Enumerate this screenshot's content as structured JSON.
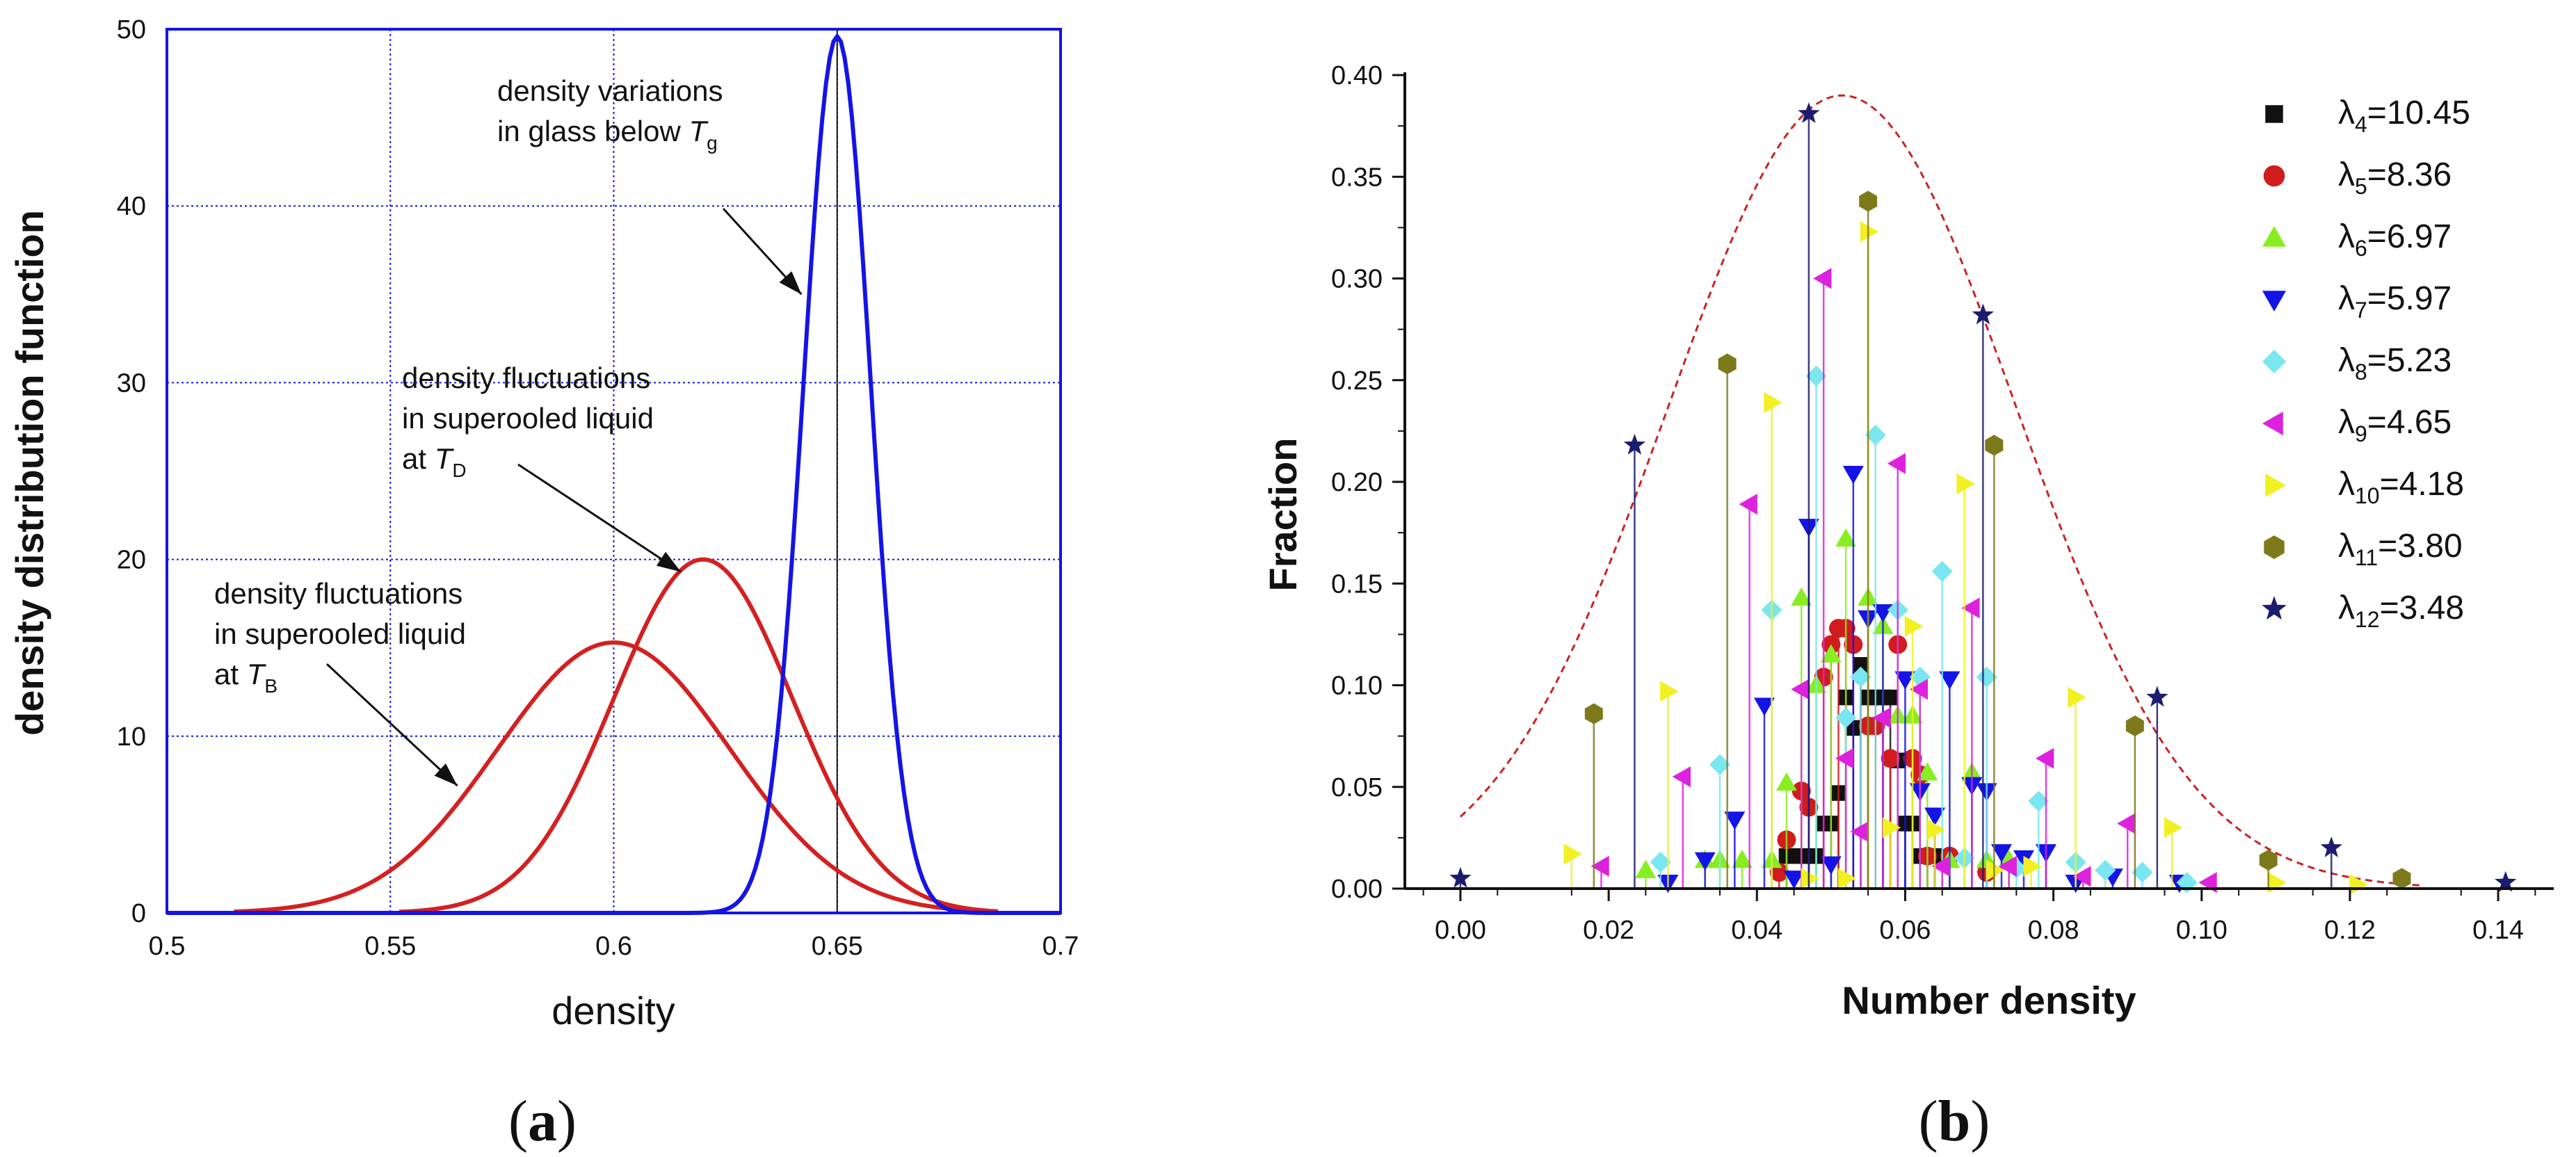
{
  "chart_data": [
    {
      "type": "line",
      "panel_label": "a",
      "xlabel": "density",
      "ylabel": "density distribution function",
      "xlim": [
        0.5,
        0.7
      ],
      "ylim": [
        0,
        50
      ],
      "x_ticks": [
        "0.5",
        "0.55",
        "0.6",
        "0.65",
        "0.7"
      ],
      "y_ticks": [
        "0",
        "10",
        "20",
        "30",
        "40",
        "50"
      ],
      "grid": true,
      "vline_x": 0.65,
      "series": [
        {
          "name": "density fluctuations in superooled liquid at T_B",
          "color": "#d42020",
          "peak_x": 0.6,
          "peak_y": 15.3,
          "sigma": 0.026,
          "x_range": [
            0.515,
            0.686
          ]
        },
        {
          "name": "density fluctuations in superooled liquid at T_D",
          "color": "#d42020",
          "peak_x": 0.62,
          "peak_y": 20.0,
          "sigma": 0.02,
          "x_range": [
            0.552,
            0.686
          ]
        },
        {
          "name": "density variations in glass below T_g",
          "color": "#1414e6",
          "peak_x": 0.65,
          "peak_y": 49.6,
          "sigma": 0.0075,
          "x_range": [
            0.5,
            0.7
          ]
        }
      ],
      "annotations": [
        {
          "lines": [
            "density variations",
            "in glass below "
          ],
          "italic": "T",
          "sub": "g",
          "arrow_to": [
            0.642,
            35.0
          ]
        },
        {
          "lines": [
            "density fluctuations",
            "in superooled liquid",
            "at "
          ],
          "italic": "T",
          "sub": "D",
          "arrow_to": [
            0.615,
            19.3
          ]
        },
        {
          "lines": [
            "density fluctuations",
            "in superooled liquid",
            "at "
          ],
          "italic": "T",
          "sub": "B",
          "arrow_to": [
            0.565,
            7.2
          ]
        }
      ]
    },
    {
      "type": "scatter",
      "panel_label": "b",
      "xlabel": "Number density",
      "ylabel": "Fraction",
      "xlim": [
        -0.0075,
        0.1475
      ],
      "ylim": [
        0,
        0.4
      ],
      "x_ticks": [
        "0.00",
        "0.02",
        "0.04",
        "0.06",
        "0.08",
        "0.10",
        "0.12",
        "0.14"
      ],
      "y_ticks": [
        "0.00",
        "0.05",
        "0.10",
        "0.15",
        "0.20",
        "0.25",
        "0.30",
        "0.35",
        "0.40"
      ],
      "fit_curve": {
        "style": "dashed",
        "color": "#cc2222",
        "peak_x": 0.0515,
        "peak_y": 0.39,
        "sigma": 0.0235
      },
      "series": [
        {
          "name": "λ4=10.45",
          "sub": "4",
          "value": "=10.45",
          "marker": "square",
          "color": "#111111",
          "points": [
            [
              0.047,
              0.016
            ],
            [
              0.048,
              0.016
            ],
            [
              0.049,
              0.032
            ],
            [
              0.05,
              0.032
            ],
            [
              0.051,
              0.047
            ],
            [
              0.052,
              0.094
            ],
            [
              0.053,
              0.079
            ],
            [
              0.054,
              0.11
            ],
            [
              0.055,
              0.094
            ],
            [
              0.056,
              0.094
            ],
            [
              0.057,
              0.094
            ],
            [
              0.058,
              0.094
            ],
            [
              0.059,
              0.063
            ],
            [
              0.06,
              0.032
            ],
            [
              0.061,
              0.032
            ],
            [
              0.062,
              0.016
            ],
            [
              0.063,
              0.016
            ],
            [
              0.064,
              0.016
            ],
            [
              0.044,
              0.016
            ],
            [
              0.046,
              0.016
            ]
          ]
        },
        {
          "name": "λ5=8.36",
          "sub": "5",
          "value": "=8.36",
          "marker": "circle",
          "color": "#d01c1c",
          "points": [
            [
              0.043,
              0.008
            ],
            [
              0.044,
              0.024
            ],
            [
              0.046,
              0.048
            ],
            [
              0.047,
              0.04
            ],
            [
              0.049,
              0.104
            ],
            [
              0.05,
              0.12
            ],
            [
              0.051,
              0.128
            ],
            [
              0.052,
              0.128
            ],
            [
              0.053,
              0.12
            ],
            [
              0.055,
              0.08
            ],
            [
              0.056,
              0.08
            ],
            [
              0.058,
              0.064
            ],
            [
              0.059,
              0.12
            ],
            [
              0.061,
              0.064
            ],
            [
              0.062,
              0.056
            ],
            [
              0.063,
              0.016
            ],
            [
              0.066,
              0.016
            ],
            [
              0.071,
              0.008
            ]
          ]
        },
        {
          "name": "λ6=6.97",
          "sub": "6",
          "value": "=6.97",
          "marker": "triangle-up",
          "color": "#88ee22",
          "points": [
            [
              0.033,
              0.014
            ],
            [
              0.035,
              0.014
            ],
            [
              0.038,
              0.014
            ],
            [
              0.042,
              0.014
            ],
            [
              0.044,
              0.052
            ],
            [
              0.046,
              0.143
            ],
            [
              0.048,
              0.1
            ],
            [
              0.05,
              0.115
            ],
            [
              0.052,
              0.172
            ],
            [
              0.055,
              0.143
            ],
            [
              0.057,
              0.129
            ],
            [
              0.059,
              0.085
            ],
            [
              0.061,
              0.085
            ],
            [
              0.063,
              0.057
            ],
            [
              0.066,
              0.014
            ],
            [
              0.069,
              0.057
            ],
            [
              0.071,
              0.014
            ],
            [
              0.074,
              0.014
            ],
            [
              0.025,
              0.009
            ]
          ]
        },
        {
          "name": "λ7=5.97",
          "sub": "7",
          "value": "=5.97",
          "marker": "triangle-down",
          "color": "#1414e6",
          "points": [
            [
              0.028,
              0.003
            ],
            [
              0.033,
              0.014
            ],
            [
              0.037,
              0.034
            ],
            [
              0.041,
              0.09
            ],
            [
              0.045,
              0.005
            ],
            [
              0.047,
              0.178
            ],
            [
              0.05,
              0.012
            ],
            [
              0.053,
              0.204
            ],
            [
              0.055,
              0.133
            ],
            [
              0.057,
              0.136
            ],
            [
              0.06,
              0.103
            ],
            [
              0.062,
              0.048
            ],
            [
              0.064,
              0.036
            ],
            [
              0.066,
              0.103
            ],
            [
              0.069,
              0.051
            ],
            [
              0.071,
              0.048
            ],
            [
              0.073,
              0.018
            ],
            [
              0.076,
              0.015
            ],
            [
              0.079,
              0.018
            ],
            [
              0.083,
              0.003
            ],
            [
              0.088,
              0.006
            ],
            [
              0.097,
              0.003
            ]
          ]
        },
        {
          "name": "λ8=5.23",
          "sub": "8",
          "value": "=5.23",
          "marker": "diamond",
          "color": "#7ae6f0",
          "points": [
            [
              0.027,
              0.013
            ],
            [
              0.035,
              0.061
            ],
            [
              0.042,
              0.137
            ],
            [
              0.048,
              0.252
            ],
            [
              0.052,
              0.084
            ],
            [
              0.054,
              0.104
            ],
            [
              0.056,
              0.223
            ],
            [
              0.059,
              0.137
            ],
            [
              0.062,
              0.104
            ],
            [
              0.065,
              0.156
            ],
            [
              0.068,
              0.015
            ],
            [
              0.071,
              0.104
            ],
            [
              0.075,
              0.01
            ],
            [
              0.078,
              0.043
            ],
            [
              0.083,
              0.013
            ],
            [
              0.087,
              0.009
            ],
            [
              0.092,
              0.008
            ],
            [
              0.098,
              0.003
            ]
          ]
        },
        {
          "name": "λ9=4.65",
          "sub": "9",
          "value": "=4.65",
          "marker": "triangle-left",
          "color": "#dd22dd",
          "points": [
            [
              0.019,
              0.011
            ],
            [
              0.03,
              0.055
            ],
            [
              0.039,
              0.189
            ],
            [
              0.046,
              0.098
            ],
            [
              0.049,
              0.3
            ],
            [
              0.052,
              0.064
            ],
            [
              0.054,
              0.028
            ],
            [
              0.057,
              0.084
            ],
            [
              0.059,
              0.209
            ],
            [
              0.062,
              0.098
            ],
            [
              0.065,
              0.011
            ],
            [
              0.069,
              0.138
            ],
            [
              0.074,
              0.011
            ],
            [
              0.079,
              0.064
            ],
            [
              0.084,
              0.006
            ],
            [
              0.09,
              0.032
            ],
            [
              0.101,
              0.003
            ]
          ]
        },
        {
          "name": "λ10=4.18",
          "sub": "10",
          "value": "=4.18",
          "marker": "triangle-right",
          "color": "#f2f020",
          "points": [
            [
              0.015,
              0.017
            ],
            [
              0.028,
              0.097
            ],
            [
              0.042,
              0.239
            ],
            [
              0.047,
              0.005
            ],
            [
              0.052,
              0.005
            ],
            [
              0.055,
              0.323
            ],
            [
              0.058,
              0.03
            ],
            [
              0.061,
              0.129
            ],
            [
              0.064,
              0.029
            ],
            [
              0.068,
              0.199
            ],
            [
              0.072,
              0.009
            ],
            [
              0.077,
              0.011
            ],
            [
              0.083,
              0.094
            ],
            [
              0.096,
              0.03
            ],
            [
              0.11,
              0.003
            ],
            [
              0.121,
              0.002
            ]
          ]
        },
        {
          "name": "λ11=3.80",
          "sub": "11",
          "value": "=3.80",
          "marker": "hexagon",
          "color": "#7d7a1c",
          "points": [
            [
              0.018,
              0.086
            ],
            [
              0.036,
              0.258
            ],
            [
              0.055,
              0.338
            ],
            [
              0.072,
              0.218
            ],
            [
              0.091,
              0.08
            ],
            [
              0.109,
              0.014
            ],
            [
              0.127,
              0.005
            ]
          ]
        },
        {
          "name": "λ12=3.48",
          "sub": "12",
          "value": "=3.48",
          "marker": "star",
          "color": "#1c1c6e",
          "points": [
            [
              0.0,
              0.005
            ],
            [
              0.0235,
              0.218
            ],
            [
              0.047,
              0.381
            ],
            [
              0.0705,
              0.282
            ],
            [
              0.094,
              0.094
            ],
            [
              0.1175,
              0.02
            ],
            [
              0.141,
              0.003
            ]
          ]
        }
      ]
    }
  ]
}
